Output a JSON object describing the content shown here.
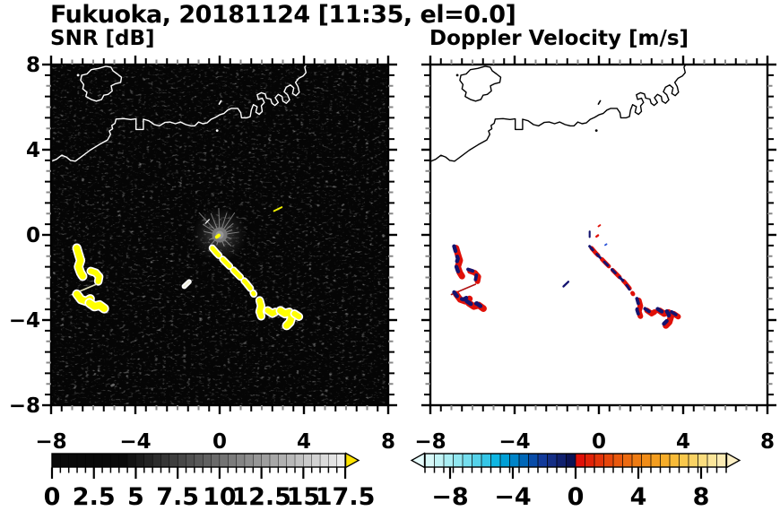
{
  "title": "Fukuoka, 20181124 [11:35, el=0.0]",
  "panels": {
    "snr": {
      "subtitle": "SNR [dB]"
    },
    "doppler": {
      "subtitle": "Doppler Velocity [m/s]"
    }
  },
  "chart_data": {
    "type": "heatmap",
    "title": "Fukuoka, 20181124 [11:35, el=0.0]",
    "panels": [
      {
        "id": "snr",
        "label": "SNR [dB]",
        "xlim": [
          -8,
          8
        ],
        "ylim": [
          -8,
          8
        ],
        "x_tick_values": [
          -8,
          -4,
          0,
          4,
          8
        ],
        "x_tick_labels": [
          "−8",
          "−4",
          "0",
          "4",
          "8"
        ],
        "y_tick_values": [
          8,
          4,
          0,
          -4,
          -8
        ],
        "y_tick_labels": [
          "8",
          "4",
          "0",
          "−4",
          "−8"
        ],
        "minor_tick_step": 0.5,
        "background": "#050505",
        "colorbar": {
          "range": [
            0,
            17.5
          ],
          "segment_step": 0.5,
          "major_tick_step": 2.5,
          "major_tick_values": [
            0,
            2.5,
            5,
            7.5,
            10,
            12.5,
            15,
            17.5
          ],
          "major_tick_labels": [
            "0",
            "2.5",
            "5",
            "7.5",
            "10",
            "12.5",
            "15",
            "17.5"
          ],
          "colors": [
            "#0a0a0a",
            "#0a0a0a",
            "#0a0a0a",
            "#0a0a0a",
            "#0a0a0a",
            "#0a0a0a",
            "#0a0a0a",
            "#0a0a0a",
            "#0a0a0a",
            "#131313",
            "#1c1c1c",
            "#242424",
            "#2d2d2d",
            "#363636",
            "#3e3e3e",
            "#474747",
            "#505050",
            "#595959",
            "#616161",
            "#6a6a6a",
            "#737373",
            "#7b7b7b",
            "#848484",
            "#8d8d8d",
            "#969696",
            "#9e9e9e",
            "#a7a7a7",
            "#b0b0b0",
            "#b8b8b8",
            "#c1c1c1",
            "#cacaca",
            "#d2d2d2",
            "#dbdbdb",
            "#e4e4e4",
            "#ededed"
          ],
          "over_arrow_color": "#ffe400"
        }
      },
      {
        "id": "doppler",
        "label": "Doppler Velocity [m/s]",
        "xlim": [
          -8,
          8
        ],
        "ylim": [
          -8,
          8
        ],
        "x_tick_values": [
          -8,
          -4,
          0,
          4,
          8
        ],
        "x_tick_labels": [
          "−8",
          "−4",
          "0",
          "4",
          "8"
        ],
        "y_tick_values": [
          8,
          4,
          0,
          -4,
          -8
        ],
        "y_tick_labels": [
          "8",
          "4",
          "0",
          "−4",
          "−8"
        ],
        "minor_tick_step": 0.5,
        "background": "#ffffff",
        "colorbar": {
          "range": [
            -9.6,
            9.6
          ],
          "segment_step": 0.6,
          "major_tick_values": [
            -8,
            -4,
            0,
            4,
            8
          ],
          "major_tick_labels": [
            "−8",
            "−4",
            "0",
            "4",
            "8"
          ],
          "colors": [
            "#d8f8f8",
            "#c2f4f6",
            "#aaeef3",
            "#90e7f0",
            "#74deee",
            "#55d3ea",
            "#34c6e7",
            "#0fb6e2",
            "#009fd6",
            "#0084c8",
            "#0067b8",
            "#084ca8",
            "#123a9a",
            "#142e85",
            "#10206e",
            "#0b1254",
            "#e01008",
            "#e12208",
            "#e3340a",
            "#e6460b",
            "#e9580d",
            "#ec6a10",
            "#ef7c13",
            "#f18d18",
            "#f49e1f",
            "#f6ad29",
            "#f8bb38",
            "#f9c84c",
            "#fad364",
            "#fbdd7e",
            "#fce69a",
            "#fdecb4"
          ],
          "under_arrow_color": "#e6fbfb",
          "over_arrow_color": "#fdf0c6"
        }
      }
    ],
    "map_overlay": {
      "coast_main": [
        [
          -8,
          3.45
        ],
        [
          -7.75,
          3.55
        ],
        [
          -7.5,
          3.74
        ],
        [
          -7.28,
          3.66
        ],
        [
          -7.08,
          3.5
        ],
        [
          -6.85,
          3.46
        ],
        [
          -6.55,
          3.68
        ],
        [
          -6.15,
          3.98
        ],
        [
          -5.72,
          4.24
        ],
        [
          -5.32,
          4.46
        ],
        [
          -5.18,
          4.72
        ],
        [
          -5.24,
          4.88
        ],
        [
          -5.08,
          4.98
        ],
        [
          -5.12,
          5.14
        ],
        [
          -4.97,
          5.24
        ],
        [
          -4.92,
          5.44
        ],
        [
          -4.55,
          5.46
        ],
        [
          -4.22,
          5.42
        ],
        [
          -3.97,
          5.45
        ],
        [
          -3.97,
          4.95
        ],
        [
          -3.62,
          4.95
        ],
        [
          -3.62,
          5.43
        ],
        [
          -3.36,
          5.36
        ],
        [
          -3.1,
          5.18
        ],
        [
          -2.86,
          5.12
        ],
        [
          -2.6,
          5.28
        ],
        [
          -2.36,
          5.3
        ],
        [
          -2.1,
          5.22
        ],
        [
          -1.86,
          5.3
        ],
        [
          -1.6,
          5.18
        ],
        [
          -1.36,
          5.12
        ],
        [
          -1.18,
          5.12
        ],
        [
          -1.0,
          5.3
        ],
        [
          -0.8,
          5.22
        ],
        [
          -0.6,
          5.26
        ],
        [
          -0.42,
          5.42
        ],
        [
          -0.2,
          5.52
        ],
        [
          0.0,
          5.64
        ],
        [
          0.2,
          5.7
        ],
        [
          0.38,
          5.86
        ],
        [
          0.56,
          5.94
        ],
        [
          0.86,
          5.94
        ],
        [
          1.0,
          5.74
        ],
        [
          1.04,
          5.5
        ],
        [
          1.3,
          5.5
        ],
        [
          1.45,
          5.56
        ],
        [
          1.5,
          5.86
        ],
        [
          1.6,
          6.12
        ],
        [
          1.78,
          6.02
        ],
        [
          1.72,
          5.76
        ],
        [
          1.88,
          5.66
        ],
        [
          2.02,
          5.8
        ],
        [
          1.98,
          6.06
        ],
        [
          2.12,
          6.22
        ],
        [
          2.02,
          6.42
        ],
        [
          1.84,
          6.36
        ],
        [
          1.78,
          6.58
        ],
        [
          1.98,
          6.68
        ],
        [
          2.16,
          6.62
        ],
        [
          2.22,
          6.42
        ],
        [
          2.42,
          6.38
        ],
        [
          2.48,
          6.18
        ],
        [
          2.62,
          6.08
        ],
        [
          2.78,
          6.22
        ],
        [
          2.64,
          6.44
        ],
        [
          2.78,
          6.6
        ],
        [
          2.96,
          6.5
        ],
        [
          3.0,
          6.28
        ],
        [
          3.16,
          6.18
        ],
        [
          3.32,
          6.34
        ],
        [
          3.22,
          6.58
        ],
        [
          3.06,
          6.72
        ],
        [
          3.16,
          6.94
        ],
        [
          3.36,
          7.04
        ],
        [
          3.52,
          6.9
        ],
        [
          3.46,
          6.64
        ],
        [
          3.62,
          6.54
        ],
        [
          3.78,
          6.7
        ],
        [
          3.72,
          6.96
        ],
        [
          3.6,
          7.16
        ],
        [
          3.76,
          7.36
        ],
        [
          3.96,
          7.46
        ],
        [
          4.1,
          7.62
        ],
        [
          4.04,
          7.88
        ],
        [
          4.16,
          8.06
        ]
      ],
      "island": [
        [
          -5.4,
          7.92
        ],
        [
          -5.75,
          7.82
        ],
        [
          -6.1,
          7.76
        ],
        [
          -6.3,
          7.56
        ],
        [
          -6.55,
          7.5
        ],
        [
          -6.6,
          7.26
        ],
        [
          -6.45,
          7.06
        ],
        [
          -6.5,
          6.86
        ],
        [
          -6.3,
          6.7
        ],
        [
          -6.35,
          6.5
        ],
        [
          -6.1,
          6.36
        ],
        [
          -5.85,
          6.28
        ],
        [
          -5.6,
          6.36
        ],
        [
          -5.5,
          6.56
        ],
        [
          -5.3,
          6.6
        ],
        [
          -5.1,
          6.76
        ],
        [
          -5.15,
          7.0
        ],
        [
          -4.95,
          7.1
        ],
        [
          -4.7,
          7.16
        ],
        [
          -4.66,
          7.4
        ],
        [
          -4.86,
          7.56
        ],
        [
          -5.06,
          7.7
        ],
        [
          -5.16,
          7.88
        ],
        [
          -5.4,
          7.92
        ]
      ],
      "islet_dash": [
        [
          -0.04,
          6.12
        ],
        [
          0.08,
          6.32
        ]
      ],
      "island_dots": [
        [
          -6.72,
          7.5
        ],
        [
          -0.12,
          4.9
        ]
      ]
    },
    "echoes": [
      {
        "id": "w-cluster-squiggle",
        "pts": [
          [
            -6.78,
            -0.62
          ],
          [
            -6.68,
            -0.95
          ],
          [
            -6.6,
            -1.2
          ],
          [
            -6.7,
            -1.5
          ],
          [
            -6.6,
            -1.78
          ],
          [
            -6.5,
            -1.94
          ]
        ],
        "w": 0.3
      },
      {
        "id": "w-cluster-hook",
        "pts": [
          [
            -6.12,
            -1.7
          ],
          [
            -5.88,
            -1.78
          ],
          [
            -5.72,
            -1.96
          ],
          [
            -5.76,
            -2.18
          ]
        ],
        "w": 0.26
      },
      {
        "id": "w-cluster-thinline",
        "pts": [
          [
            -7.0,
            -2.8
          ],
          [
            -5.86,
            -2.32
          ]
        ],
        "w": 0.07,
        "thin": true,
        "snr": "#ddddbb"
      },
      {
        "id": "w-cluster-arc",
        "pts": [
          [
            -6.78,
            -2.78
          ],
          [
            -6.58,
            -3.04
          ],
          [
            -6.34,
            -3.12
          ],
          [
            -6.14,
            -3.0
          ]
        ],
        "w": 0.3
      },
      {
        "id": "w-cluster-blob",
        "pts": [
          [
            -6.18,
            -3.2
          ],
          [
            -5.94,
            -3.36
          ],
          [
            -5.7,
            -3.3
          ],
          [
            -5.48,
            -3.46
          ]
        ],
        "w": 0.32
      },
      {
        "id": "main-streak",
        "pts": [
          [
            -0.35,
            -0.62
          ],
          [
            -0.15,
            -0.85
          ],
          [
            0.1,
            -1.1
          ],
          [
            0.32,
            -1.32
          ],
          [
            0.55,
            -1.55
          ],
          [
            0.78,
            -1.78
          ],
          [
            1.0,
            -2.0
          ],
          [
            1.22,
            -2.22
          ],
          [
            1.45,
            -2.5
          ],
          [
            1.62,
            -2.78
          ]
        ],
        "w": 0.2,
        "dash": "11 6"
      },
      {
        "id": "se-vblob",
        "pts": [
          [
            1.9,
            -3.08
          ],
          [
            1.97,
            -3.34
          ],
          [
            1.9,
            -3.6
          ],
          [
            1.97,
            -3.82
          ]
        ],
        "w": 0.26
      },
      {
        "id": "se-arc",
        "pts": [
          [
            2.28,
            -3.55
          ],
          [
            2.5,
            -3.7
          ],
          [
            2.64,
            -3.62
          ]
        ],
        "w": 0.26
      },
      {
        "id": "se-hook",
        "pts": [
          [
            2.88,
            -3.56
          ],
          [
            3.1,
            -3.7
          ],
          [
            3.3,
            -3.64
          ],
          [
            3.42,
            -3.84
          ],
          [
            3.34,
            -4.1
          ],
          [
            3.18,
            -4.26
          ]
        ],
        "w": 0.3
      },
      {
        "id": "se-tail",
        "pts": [
          [
            3.55,
            -3.7
          ],
          [
            3.76,
            -3.84
          ]
        ],
        "w": 0.26
      },
      {
        "id": "small-dash",
        "pts": [
          [
            -1.68,
            -2.42
          ],
          [
            -1.45,
            -2.2
          ]
        ],
        "w": 0.1,
        "snr": "#eeeedd",
        "dopColor": "#141470"
      }
    ],
    "snr_only_marks": [
      {
        "id": "center-dot",
        "pts": [
          [
            -0.14,
            -0.1
          ],
          [
            -0.04,
            -0.02
          ]
        ],
        "w": 0.16,
        "color": "#ffff00"
      },
      {
        "id": "ne-dash",
        "pts": [
          [
            2.58,
            1.12
          ],
          [
            2.95,
            1.3
          ]
        ],
        "w": 0.08,
        "color": "#f2f200"
      },
      {
        "id": "white-dash",
        "pts": [
          [
            -0.66,
            0.55
          ],
          [
            -0.5,
            0.72
          ]
        ],
        "w": 0.06,
        "color": "#e8e8e8"
      },
      {
        "id": "faint-dot",
        "pts": [
          [
            -5.12,
            -7.08
          ],
          [
            -5.04,
            -7.04
          ]
        ],
        "w": 0.12,
        "color": "#666666"
      }
    ],
    "doppler_only_marks": [
      {
        "id": "navy-vdash",
        "pts": [
          [
            -0.44,
            0.16
          ],
          [
            -0.44,
            -0.1
          ]
        ],
        "w": 0.09,
        "color": "#141470"
      },
      {
        "id": "red-dot",
        "pts": [
          [
            -0.02,
            0.4
          ],
          [
            0.06,
            0.46
          ]
        ],
        "w": 0.08,
        "color": "#e01008"
      },
      {
        "id": "blue-dot",
        "pts": [
          [
            0.3,
            -0.48
          ],
          [
            0.36,
            -0.44
          ]
        ],
        "w": 0.08,
        "color": "#2a52d8"
      },
      {
        "id": "center-red-dot",
        "pts": [
          [
            -0.12,
            -0.08
          ],
          [
            -0.04,
            -0.02
          ]
        ],
        "w": 0.1,
        "color": "#e01008"
      }
    ],
    "radar_center": {
      "x": 0,
      "y": 0,
      "spokes": [
        {
          "a": 92,
          "l": 30
        },
        {
          "a": 112,
          "l": 26
        },
        {
          "a": 133,
          "l": 34
        },
        {
          "a": 148,
          "l": 22
        },
        {
          "a": 72,
          "l": 26
        },
        {
          "a": 56,
          "l": 30
        },
        {
          "a": 40,
          "l": 20
        },
        {
          "a": 22,
          "l": 15
        },
        {
          "a": 168,
          "l": 18
        },
        {
          "a": 8,
          "l": 22
        },
        {
          "a": -18,
          "l": 14
        },
        {
          "a": -44,
          "l": 18
        },
        {
          "a": -68,
          "l": 14
        },
        {
          "a": -106,
          "l": 12
        },
        {
          "a": -132,
          "l": 16
        },
        {
          "a": -155,
          "l": 13
        }
      ]
    },
    "colors": {
      "snr_echo": "#ffff00",
      "snr_halo": "#ffffff",
      "echo_positive": "#e01008",
      "echo_negative": "#141470",
      "coast_snr": "#ffffff",
      "coast_doppler": "#000000"
    }
  }
}
